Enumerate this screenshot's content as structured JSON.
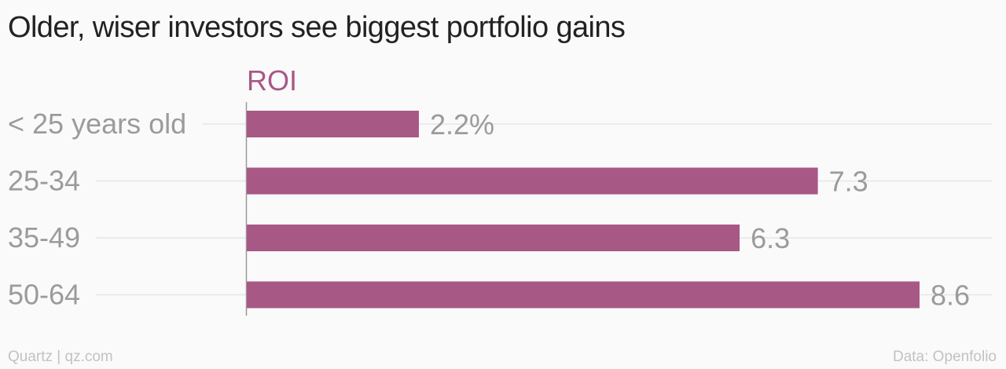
{
  "chart_data": {
    "type": "bar",
    "orientation": "horizontal",
    "title": "Older, wiser investors see biggest portfolio gains",
    "series_label": "ROI",
    "categories": [
      "< 25 years old",
      "25-34",
      "35-49",
      "50-64"
    ],
    "values": [
      2.2,
      7.3,
      6.3,
      8.6
    ],
    "value_labels": [
      "2.2%",
      "7.3",
      "6.3",
      "8.6"
    ],
    "unit": "%",
    "xlim": [
      0,
      8.6
    ],
    "grid": true,
    "bar_color": "#a85885"
  },
  "footer": {
    "credit": "Quartz | qz.com",
    "source": "Data: Openfolio"
  },
  "colors": {
    "background": "#fafafa",
    "title": "#222222",
    "category_text": "#9b9b9b",
    "value_text": "#9b9b9b",
    "gridline": "#e6e6e6",
    "axis": "#999999",
    "footer_text": "#c2c2c2"
  }
}
